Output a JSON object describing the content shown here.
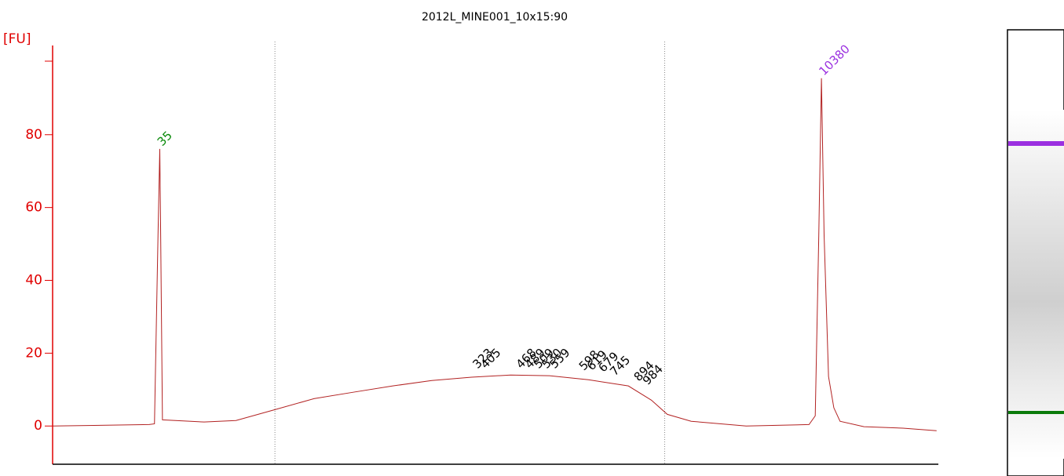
{
  "chart_data": {
    "type": "line",
    "title": "2012L_MINE001_10x15:90",
    "ylabel": "[FU]",
    "xlim": [
      0,
      100
    ],
    "ylim": [
      -10.5,
      104.5
    ],
    "yticks": [
      0,
      20,
      40,
      60,
      80
    ],
    "axis_color": "#e00000",
    "x": [
      0,
      10.9,
      11.5,
      11.9,
      12.1,
      12.2,
      12.4,
      17.1,
      20.7,
      25.1,
      29.5,
      34.0,
      38.4,
      42.8,
      47.3,
      51.7,
      56.1,
      60.5,
      65.0,
      67.6,
      69.4,
      72.1,
      78.3,
      85.4,
      86.1,
      86.5,
      86.8,
      87.1,
      87.6,
      88.2,
      88.9,
      91.6,
      96.0,
      99.8
    ],
    "series": [
      {
        "name": "sample",
        "color": "#b22222",
        "values": [
          0,
          0.4,
          0.6,
          52.4,
          76.1,
          52.4,
          1.7,
          1.1,
          1.5,
          4.5,
          7.5,
          9.3,
          11.0,
          12.5,
          13.4,
          14.0,
          13.8,
          12.7,
          11.0,
          7.1,
          3.2,
          1.3,
          0,
          0.4,
          2.8,
          52.4,
          95.5,
          52.4,
          13.6,
          5.0,
          1.3,
          -0.2,
          -0.6,
          -1.3
        ]
      }
    ],
    "region_bounds": [
      25.1,
      69.1
    ],
    "peak_labels": [
      {
        "label": "35",
        "x": 12.1,
        "y": 76.1,
        "color": "#0a8a0a"
      },
      {
        "label": "10380",
        "x": 86.8,
        "y": 95.5,
        "color": "#9b30e0"
      },
      {
        "label": "323",
        "x": 47.7,
        "y": 15,
        "color": "#000000"
      },
      {
        "label": "405",
        "x": 48.6,
        "y": 15,
        "color": "#000000"
      },
      {
        "label": "468",
        "x": 52.6,
        "y": 15,
        "color": "#000000"
      },
      {
        "label": "489",
        "x": 53.6,
        "y": 15,
        "color": "#000000"
      },
      {
        "label": "509",
        "x": 54.6,
        "y": 15,
        "color": "#000000"
      },
      {
        "label": "530",
        "x": 55.5,
        "y": 15,
        "color": "#000000"
      },
      {
        "label": "559",
        "x": 56.4,
        "y": 15,
        "color": "#000000"
      },
      {
        "label": "598",
        "x": 59.7,
        "y": 14.5,
        "color": "#000000"
      },
      {
        "label": "619",
        "x": 60.6,
        "y": 14.5,
        "color": "#000000"
      },
      {
        "label": "679",
        "x": 61.9,
        "y": 14,
        "color": "#000000"
      },
      {
        "label": "745",
        "x": 63.2,
        "y": 13,
        "color": "#000000"
      },
      {
        "label": "894",
        "x": 65.9,
        "y": 11.5,
        "color": "#000000"
      },
      {
        "label": "984",
        "x": 66.9,
        "y": 10.5,
        "color": "#000000"
      }
    ]
  }
}
